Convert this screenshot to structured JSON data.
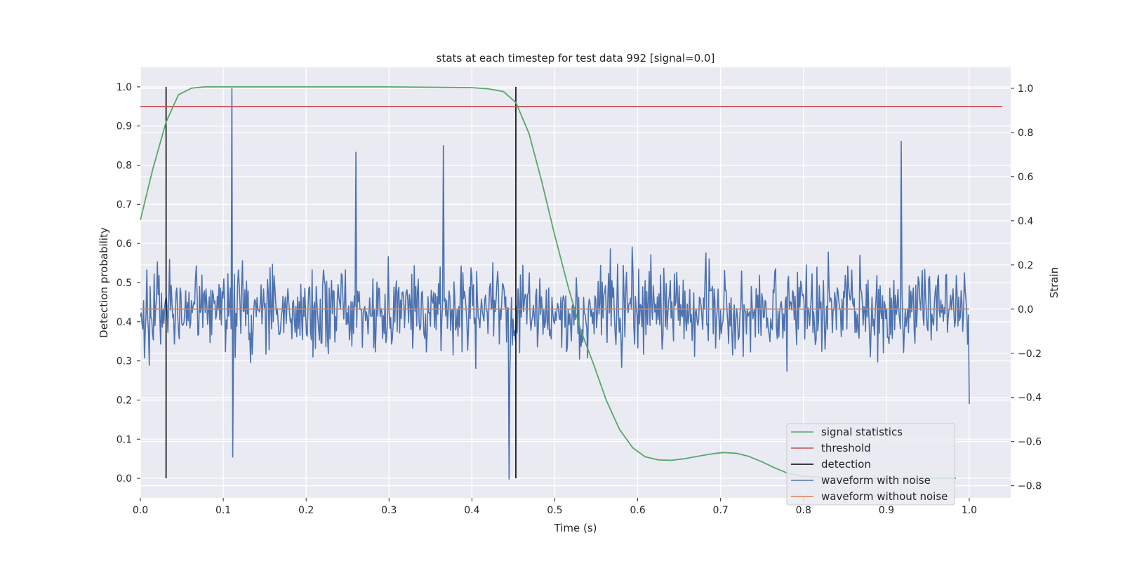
{
  "chart_data": {
    "type": "line",
    "title": "stats at each timestep for test data 992 [signal=0.0]",
    "xlabel": "Time (s)",
    "ylabel_left": "Detection probability",
    "ylabel_right": "Strain",
    "xlim": [
      0.0,
      1.05
    ],
    "ylim_left": [
      -0.05,
      1.05
    ],
    "ylim_right": [
      -0.855,
      1.095
    ],
    "x_ticks": [
      0.0,
      0.1,
      0.2,
      0.3,
      0.4,
      0.5,
      0.6,
      0.7,
      0.8,
      0.9,
      1.0
    ],
    "x_tick_labels": [
      "0.0",
      "0.1",
      "0.2",
      "0.3",
      "0.4",
      "0.5",
      "0.6",
      "0.7",
      "0.8",
      "0.9",
      "1.0"
    ],
    "y_left_ticks": [
      0.0,
      0.1,
      0.2,
      0.3,
      0.4,
      0.5,
      0.6,
      0.7,
      0.8,
      0.9,
      1.0
    ],
    "y_left_tick_labels": [
      "0.0",
      "0.1",
      "0.2",
      "0.3",
      "0.4",
      "0.5",
      "0.6",
      "0.7",
      "0.8",
      "0.9",
      "1.0"
    ],
    "y_right_ticks": [
      -0.8,
      -0.6,
      -0.4,
      -0.2,
      0.0,
      0.2,
      0.4,
      0.6,
      0.8,
      1.0
    ],
    "y_right_tick_labels": [
      "−0.8",
      "−0.6",
      "−0.4",
      "−0.2",
      "0.0",
      "0.2",
      "0.4",
      "0.6",
      "0.8",
      "1.0"
    ],
    "grid": true,
    "legend_position": "bottom-right",
    "signal_statistics": {
      "name": "signal statistics",
      "color": "#55a868",
      "axis": "left",
      "x": [
        0.0,
        0.015,
        0.031,
        0.046,
        0.062,
        0.078,
        0.1,
        0.2,
        0.3,
        0.4,
        0.42,
        0.438,
        0.453,
        0.469,
        0.484,
        0.5,
        0.516,
        0.531,
        0.547,
        0.562,
        0.578,
        0.594,
        0.609,
        0.625,
        0.641,
        0.656,
        0.672,
        0.688,
        0.703,
        0.719,
        0.734,
        0.75,
        0.766,
        0.781,
        0.797,
        0.812,
        0.828,
        0.844,
        0.859,
        0.875,
        0.89,
        0.906,
        0.922,
        0.938,
        0.953,
        0.969,
        0.984
      ],
      "y": [
        0.66,
        0.79,
        0.91,
        0.98,
        0.997,
        1.0,
        1.0,
        1.0,
        1.0,
        0.998,
        0.995,
        0.988,
        0.96,
        0.88,
        0.76,
        0.62,
        0.49,
        0.38,
        0.29,
        0.2,
        0.125,
        0.078,
        0.055,
        0.047,
        0.046,
        0.05,
        0.056,
        0.062,
        0.066,
        0.064,
        0.056,
        0.042,
        0.026,
        0.013,
        0.006,
        0.003,
        0.002,
        0.001,
        0.0,
        0.0,
        0.0,
        0.0,
        0.0,
        0.0,
        0.0,
        0.0,
        0.0
      ]
    },
    "threshold": {
      "name": "threshold",
      "color": "#c44e52",
      "axis": "left",
      "value": 0.95,
      "x_range": [
        0.0,
        1.04
      ]
    },
    "detections": {
      "name": "detection",
      "color": "#000000",
      "axis": "left",
      "x": [
        0.031,
        0.453
      ],
      "y_range": [
        0.0,
        1.0
      ]
    },
    "waveform_with_noise": {
      "name": "waveform with noise",
      "color": "#4c72b0",
      "axis": "right",
      "x_range": [
        0.0,
        1.0
      ],
      "n_points": 1024,
      "sample_peaks": {
        "x": [
          0.11,
          0.11,
          0.445,
          0.26,
          0.366,
          0.918
        ],
        "y": [
          1.0,
          -0.67,
          -0.77,
          0.71,
          0.74,
          0.76
        ]
      }
    },
    "waveform_without_noise": {
      "name": "waveform without noise",
      "color": "#dd8452",
      "axis": "right",
      "value": 0.0,
      "x_range": [
        0.0,
        1.0
      ]
    },
    "legend": [
      "signal statistics",
      "threshold",
      "detection",
      "waveform with noise",
      "waveform without noise"
    ]
  }
}
